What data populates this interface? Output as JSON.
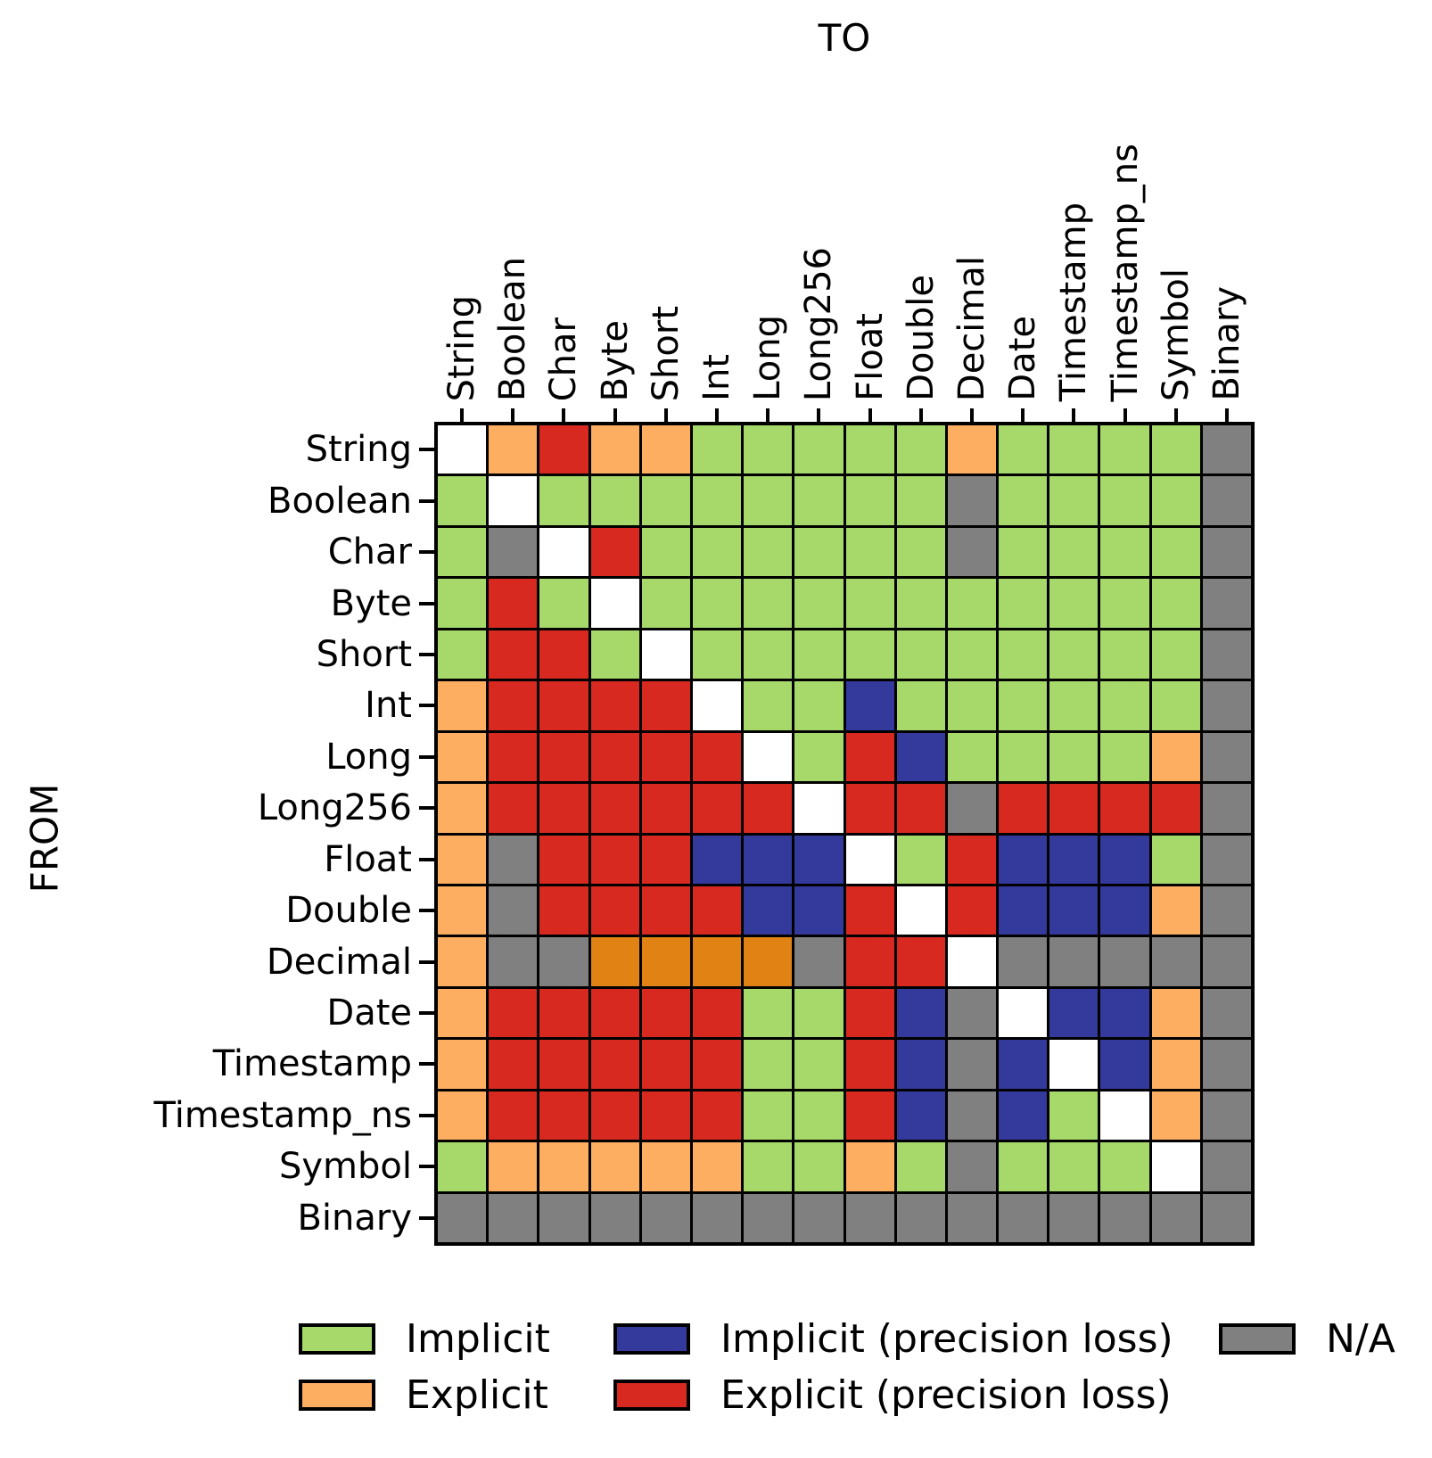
{
  "title": "TO",
  "y_axis_title": "FROM",
  "chart_data": {
    "type": "heatmap",
    "title": "TO",
    "xlabel": "TO",
    "ylabel": "FROM",
    "grid": true,
    "legend_position": "bottom",
    "columns": [
      "String",
      "Boolean",
      "Char",
      "Byte",
      "Short",
      "Int",
      "Long",
      "Long256",
      "Float",
      "Double",
      "Decimal",
      "Date",
      "Timestamp",
      "Timestamp_ns",
      "Symbol",
      "Binary"
    ],
    "rows": [
      "String",
      "Boolean",
      "Char",
      "Byte",
      "Short",
      "Int",
      "Long",
      "Long256",
      "Float",
      "Double",
      "Decimal",
      "Date",
      "Timestamp",
      "Timestamp_ns",
      "Symbol",
      "Binary"
    ],
    "cell_code_meaning": {
      "I": "Implicit",
      "E": "Explicit",
      "IP": "Implicit (precision loss)",
      "EP": "Explicit (precision loss)",
      "EA": "Explicit (dark orange variant)",
      "NA": "N/A",
      "SELF": "Same type (blank diagonal)"
    },
    "colors": {
      "I": "#a6d96a",
      "E": "#fdae61",
      "IP": "#333a9b",
      "EP": "#d7291f",
      "EA": "#e08214",
      "NA": "#808080",
      "SELF": "#ffffff"
    },
    "matrix": [
      [
        "SELF",
        "E",
        "EP",
        "E",
        "E",
        "I",
        "I",
        "I",
        "I",
        "I",
        "E",
        "I",
        "I",
        "I",
        "I",
        "NA"
      ],
      [
        "I",
        "SELF",
        "I",
        "I",
        "I",
        "I",
        "I",
        "I",
        "I",
        "I",
        "NA",
        "I",
        "I",
        "I",
        "I",
        "NA"
      ],
      [
        "I",
        "NA",
        "SELF",
        "EP",
        "I",
        "I",
        "I",
        "I",
        "I",
        "I",
        "NA",
        "I",
        "I",
        "I",
        "I",
        "NA"
      ],
      [
        "I",
        "EP",
        "I",
        "SELF",
        "I",
        "I",
        "I",
        "I",
        "I",
        "I",
        "I",
        "I",
        "I",
        "I",
        "I",
        "NA"
      ],
      [
        "I",
        "EP",
        "EP",
        "I",
        "SELF",
        "I",
        "I",
        "I",
        "I",
        "I",
        "I",
        "I",
        "I",
        "I",
        "I",
        "NA"
      ],
      [
        "E",
        "EP",
        "EP",
        "EP",
        "EP",
        "SELF",
        "I",
        "I",
        "IP",
        "I",
        "I",
        "I",
        "I",
        "I",
        "I",
        "NA"
      ],
      [
        "E",
        "EP",
        "EP",
        "EP",
        "EP",
        "EP",
        "SELF",
        "I",
        "EP",
        "IP",
        "I",
        "I",
        "I",
        "I",
        "E",
        "NA"
      ],
      [
        "E",
        "EP",
        "EP",
        "EP",
        "EP",
        "EP",
        "EP",
        "SELF",
        "EP",
        "EP",
        "NA",
        "EP",
        "EP",
        "EP",
        "EP",
        "NA"
      ],
      [
        "E",
        "NA",
        "EP",
        "EP",
        "EP",
        "IP",
        "IP",
        "IP",
        "SELF",
        "I",
        "EP",
        "IP",
        "IP",
        "IP",
        "I",
        "NA"
      ],
      [
        "E",
        "NA",
        "EP",
        "EP",
        "EP",
        "EP",
        "IP",
        "IP",
        "EP",
        "SELF",
        "EP",
        "IP",
        "IP",
        "IP",
        "E",
        "NA"
      ],
      [
        "E",
        "NA",
        "NA",
        "EA",
        "EA",
        "EA",
        "EA",
        "NA",
        "EP",
        "EP",
        "SELF",
        "NA",
        "NA",
        "NA",
        "NA",
        "NA"
      ],
      [
        "E",
        "EP",
        "EP",
        "EP",
        "EP",
        "EP",
        "I",
        "I",
        "EP",
        "IP",
        "NA",
        "SELF",
        "IP",
        "IP",
        "E",
        "NA"
      ],
      [
        "E",
        "EP",
        "EP",
        "EP",
        "EP",
        "EP",
        "I",
        "I",
        "EP",
        "IP",
        "NA",
        "IP",
        "SELF",
        "IP",
        "E",
        "NA"
      ],
      [
        "E",
        "EP",
        "EP",
        "EP",
        "EP",
        "EP",
        "I",
        "I",
        "EP",
        "IP",
        "NA",
        "IP",
        "I",
        "SELF",
        "E",
        "NA"
      ],
      [
        "I",
        "E",
        "E",
        "E",
        "E",
        "E",
        "I",
        "I",
        "E",
        "I",
        "NA",
        "I",
        "I",
        "I",
        "SELF",
        "NA"
      ],
      [
        "NA",
        "NA",
        "NA",
        "NA",
        "NA",
        "NA",
        "NA",
        "NA",
        "NA",
        "NA",
        "NA",
        "NA",
        "NA",
        "NA",
        "NA",
        "NA"
      ]
    ],
    "legend": [
      {
        "label": "Implicit",
        "code": "I",
        "color": "#a6d96a"
      },
      {
        "label": "Explicit",
        "code": "E",
        "color": "#fdae61"
      },
      {
        "label": "Implicit (precision loss)",
        "code": "IP",
        "color": "#333a9b"
      },
      {
        "label": "Explicit (precision loss)",
        "code": "EP",
        "color": "#d7291f"
      },
      {
        "label": "N/A",
        "code": "NA",
        "color": "#808080"
      }
    ]
  }
}
